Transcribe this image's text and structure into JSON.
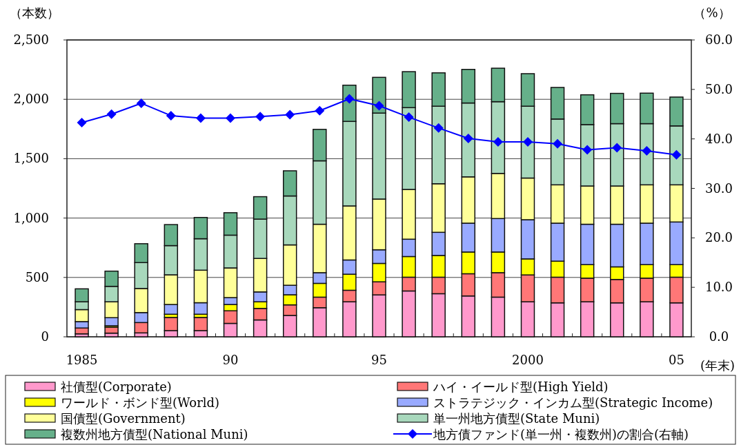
{
  "chart_data": {
    "type": "bar",
    "stacked": true,
    "categories": [
      "1985",
      null,
      null,
      null,
      null,
      "90",
      null,
      null,
      null,
      null,
      "95",
      null,
      null,
      null,
      null,
      "2000",
      null,
      null,
      null,
      null,
      "05"
    ],
    "xlabel": "(年末)",
    "ylabel": "（本数）",
    "y2label": "（%）",
    "ylim": [
      0,
      2500
    ],
    "yticks": [
      0,
      {
        "value": 500,
        "label": "500"
      },
      {
        "value": 1000,
        "label": "1,000"
      },
      {
        "value": 1500,
        "label": "1,500"
      },
      {
        "value": 2000,
        "label": "2,000"
      },
      {
        "value": 2500,
        "label": "2,500"
      }
    ],
    "y2lim": [
      0,
      60
    ],
    "y2ticks": [
      {
        "value": 0,
        "label": "0.0"
      },
      {
        "value": 10,
        "label": "10.0"
      },
      {
        "value": 20,
        "label": "20.0"
      },
      {
        "value": 30,
        "label": "30.0"
      },
      {
        "value": 40,
        "label": "40.0"
      },
      {
        "value": 50,
        "label": "50.0"
      },
      {
        "value": 60,
        "label": "60.0"
      }
    ],
    "grid": "y",
    "legend": "bottom",
    "series": [
      {
        "name": "社債型(Corporate)",
        "color": "#ff99cc",
        "values": [
          25,
          31,
          33,
          52,
          52,
          113,
          142,
          180,
          245,
          295,
          353,
          386,
          363,
          344,
          334,
          295,
          286,
          295,
          286,
          295,
          286
        ]
      },
      {
        "name": "ハイ・イールド型(High Yield)",
        "color": "#ff7777",
        "values": [
          49,
          50,
          87,
          111,
          111,
          106,
          97,
          89,
          89,
          97,
          110,
          116,
          139,
          187,
          206,
          226,
          216,
          199,
          197,
          199,
          216
        ]
      },
      {
        "name": "ワールド・ボンド型(World)",
        "color": "#ffff00",
        "values": [
          0,
          12,
          null,
          27,
          27,
          53,
          56,
          85,
          116,
          135,
          155,
          174,
          183,
          183,
          174,
          135,
          135,
          114,
          106,
          114,
          106
        ]
      },
      {
        "name": "ストラテジック・インカム型(Strategic Income)",
        "color": "#99aaff",
        "values": [
          54,
          68,
          84,
          82,
          97,
          58,
          83,
          80,
          90,
          120,
          115,
          146,
          195,
          243,
          282,
          330,
          320,
          340,
          359,
          349,
          359
        ]
      },
      {
        "name": "国債型(Government)",
        "color": "#ffff99",
        "values": [
          101,
          134,
          203,
          250,
          274,
          250,
          282,
          340,
          408,
          455,
          427,
          419,
          409,
          390,
          380,
          351,
          323,
          322,
          322,
          323,
          313
        ]
      },
      {
        "name": "単一州地方債型(State Muni)",
        "color": "#a8d8bc",
        "values": [
          66,
          130,
          218,
          246,
          265,
          276,
          331,
          412,
          534,
          712,
          724,
          689,
          653,
          622,
          604,
          605,
          554,
          517,
          525,
          515,
          496
        ]
      },
      {
        "name": "複数州地方債型(National Muni)",
        "color": "#66b08a",
        "values": [
          109,
          128,
          159,
          177,
          179,
          189,
          189,
          212,
          265,
          305,
          301,
          303,
          281,
          283,
          282,
          274,
          266,
          251,
          255,
          257,
          243
        ]
      },
      {
        "name": "地方債ファンド(単一州・複数州)の割合(右軸)",
        "type": "line",
        "axis": "y2",
        "color": "#0000ff",
        "marker": "diamond",
        "values": [
          43.3,
          45.0,
          47.2,
          44.7,
          44.2,
          44.2,
          44.5,
          44.9,
          45.7,
          48.1,
          46.7,
          44.4,
          42.2,
          40.1,
          39.4,
          39.4,
          39.0,
          37.8,
          38.2,
          37.6,
          36.8
        ]
      }
    ]
  }
}
